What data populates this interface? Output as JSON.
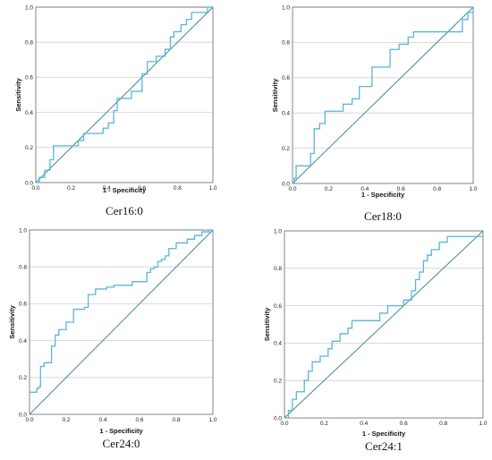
{
  "colors": {
    "roc": "#5ab4dc",
    "reference": "#3c8c96",
    "grid": "#d0d0d0"
  },
  "chart_data": [
    {
      "type": "line",
      "xlabel": "1 - Specificity",
      "ylabel": "Sensitivity",
      "caption": "Cer16:0",
      "xlim": [
        0,
        1
      ],
      "ylim": [
        0,
        1
      ],
      "grid": "horizontal",
      "ticks": [
        "0.0",
        "0.2",
        "0.4",
        "0.6",
        "0.8",
        "1.0"
      ],
      "series": [
        {
          "x": [
            0,
            0.02,
            0.02,
            0.05,
            0.05,
            0.08,
            0.08,
            0.1,
            0.1,
            0.24,
            0.24,
            0.27,
            0.27,
            0.38,
            0.38,
            0.41,
            0.41,
            0.44,
            0.44,
            0.46,
            0.46,
            0.54,
            0.54,
            0.6,
            0.6,
            0.63,
            0.63,
            0.68,
            0.68,
            0.73,
            0.73,
            0.76,
            0.76,
            0.78,
            0.78,
            0.82,
            0.82,
            0.85,
            0.85,
            0.88,
            0.88,
            0.97,
            0.97,
            1.0
          ],
          "y": [
            0,
            0,
            0.03,
            0.03,
            0.07,
            0.07,
            0.13,
            0.13,
            0.21,
            0.21,
            0.24,
            0.24,
            0.28,
            0.28,
            0.31,
            0.31,
            0.34,
            0.34,
            0.41,
            0.41,
            0.48,
            0.48,
            0.52,
            0.52,
            0.62,
            0.62,
            0.69,
            0.69,
            0.72,
            0.72,
            0.76,
            0.76,
            0.83,
            0.83,
            0.86,
            0.86,
            0.9,
            0.9,
            0.93,
            0.93,
            0.97,
            0.97,
            1.0,
            1.0
          ]
        },
        {
          "x": [
            0,
            1
          ],
          "y": [
            0,
            1
          ]
        }
      ]
    },
    {
      "type": "line",
      "xlabel": "1 - Specificity",
      "ylabel": "Sensitivity",
      "caption": "Cer18:0",
      "xlim": [
        0,
        1
      ],
      "ylim": [
        0,
        1
      ],
      "grid": "horizontal",
      "ticks": [
        "0.0",
        "0.2",
        "0.4",
        "0.6",
        "0.8",
        "1.0"
      ],
      "series": [
        {
          "x": [
            0,
            0.01,
            0.01,
            0.02,
            0.02,
            0.1,
            0.1,
            0.12,
            0.12,
            0.15,
            0.15,
            0.18,
            0.18,
            0.28,
            0.28,
            0.33,
            0.33,
            0.37,
            0.37,
            0.44,
            0.44,
            0.54,
            0.54,
            0.59,
            0.59,
            0.64,
            0.64,
            0.67,
            0.67,
            0.72,
            0.72,
            0.8,
            0.8,
            0.9,
            0.9,
            0.94,
            0.94,
            0.97,
            0.97,
            1.0,
            1.0
          ],
          "y": [
            0,
            0,
            0.03,
            0.03,
            0.1,
            0.1,
            0.17,
            0.17,
            0.31,
            0.31,
            0.34,
            0.34,
            0.41,
            0.41,
            0.45,
            0.45,
            0.48,
            0.48,
            0.55,
            0.55,
            0.66,
            0.66,
            0.76,
            0.76,
            0.79,
            0.79,
            0.83,
            0.83,
            0.86,
            0.86,
            0.86,
            0.86,
            0.86,
            0.86,
            0.86,
            0.86,
            0.93,
            0.93,
            0.97,
            0.97,
            1.0
          ]
        },
        {
          "x": [
            0,
            1
          ],
          "y": [
            0,
            1
          ]
        }
      ]
    },
    {
      "type": "line",
      "xlabel": "1 - Specificity",
      "ylabel": "Sensitivity",
      "caption": "Cer24:0",
      "xlim": [
        0,
        1
      ],
      "ylim": [
        0,
        1
      ],
      "grid": "horizontal",
      "ticks": [
        "0.0",
        "0.2",
        "0.4",
        "0.6",
        "0.8",
        "1.0"
      ],
      "series": [
        {
          "x": [
            0,
            0.04,
            0.04,
            0.05,
            0.05,
            0.06,
            0.06,
            0.08,
            0.08,
            0.12,
            0.12,
            0.14,
            0.14,
            0.16,
            0.16,
            0.2,
            0.2,
            0.24,
            0.24,
            0.3,
            0.3,
            0.32,
            0.32,
            0.36,
            0.36,
            0.42,
            0.42,
            0.46,
            0.46,
            0.52,
            0.52,
            0.56,
            0.56,
            0.64,
            0.64,
            0.66,
            0.66,
            0.68,
            0.68,
            0.7,
            0.7,
            0.72,
            0.72,
            0.74,
            0.74,
            0.76,
            0.76,
            0.8,
            0.8,
            0.86,
            0.86,
            0.9,
            0.9,
            0.94,
            0.94,
            0.98,
            0.98,
            1.0
          ],
          "y": [
            0.12,
            0.12,
            0.14,
            0.14,
            0.15,
            0.15,
            0.26,
            0.26,
            0.28,
            0.28,
            0.37,
            0.37,
            0.43,
            0.43,
            0.46,
            0.46,
            0.5,
            0.5,
            0.57,
            0.57,
            0.58,
            0.58,
            0.65,
            0.65,
            0.68,
            0.68,
            0.69,
            0.69,
            0.7,
            0.7,
            0.7,
            0.7,
            0.72,
            0.72,
            0.77,
            0.77,
            0.79,
            0.79,
            0.8,
            0.8,
            0.83,
            0.83,
            0.84,
            0.84,
            0.86,
            0.86,
            0.9,
            0.9,
            0.93,
            0.93,
            0.95,
            0.95,
            0.97,
            0.97,
            0.99,
            0.99,
            1.0,
            1.0
          ]
        },
        {
          "x": [
            0,
            1
          ],
          "y": [
            0,
            1
          ]
        }
      ]
    },
    {
      "type": "line",
      "xlabel": "1 - Specificity",
      "ylabel": "Sensitivity",
      "caption": "Cer24:1",
      "xlim": [
        0,
        1
      ],
      "ylim": [
        0,
        1
      ],
      "grid": "horizontal",
      "ticks": [
        "0.0",
        "0.2",
        "0.4",
        "0.6",
        "0.8",
        "1.0"
      ],
      "series": [
        {
          "x": [
            0,
            0.02,
            0.02,
            0.04,
            0.04,
            0.06,
            0.06,
            0.1,
            0.1,
            0.12,
            0.12,
            0.14,
            0.14,
            0.18,
            0.18,
            0.22,
            0.22,
            0.24,
            0.24,
            0.28,
            0.28,
            0.32,
            0.32,
            0.34,
            0.34,
            0.36,
            0.36,
            0.48,
            0.48,
            0.52,
            0.52,
            0.6,
            0.6,
            0.64,
            0.64,
            0.66,
            0.66,
            0.68,
            0.68,
            0.7,
            0.7,
            0.72,
            0.72,
            0.74,
            0.74,
            0.78,
            0.78,
            0.82,
            0.82,
            1.0
          ],
          "y": [
            0,
            0,
            0.04,
            0.04,
            0.1,
            0.1,
            0.14,
            0.14,
            0.2,
            0.2,
            0.25,
            0.25,
            0.3,
            0.3,
            0.33,
            0.33,
            0.37,
            0.37,
            0.41,
            0.41,
            0.45,
            0.45,
            0.48,
            0.48,
            0.52,
            0.52,
            0.52,
            0.52,
            0.56,
            0.56,
            0.6,
            0.6,
            0.63,
            0.63,
            0.68,
            0.68,
            0.74,
            0.74,
            0.78,
            0.78,
            0.84,
            0.84,
            0.87,
            0.87,
            0.9,
            0.9,
            0.94,
            0.94,
            0.97,
            0.97
          ]
        },
        {
          "x": [
            0,
            1
          ],
          "y": [
            0,
            1
          ]
        }
      ]
    }
  ]
}
